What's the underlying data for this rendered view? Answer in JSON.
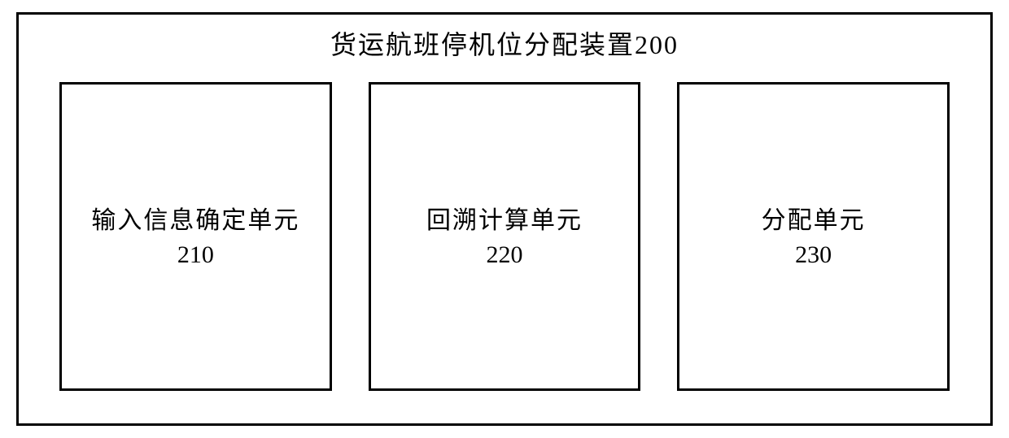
{
  "diagram": {
    "type": "block-diagram",
    "title": "货运航班停机位分配装置200",
    "background_color": "#ffffff",
    "border_color": "#000000",
    "border_width": 3,
    "text_color": "#000000",
    "title_fontsize": 32,
    "unit_fontsize": 30,
    "layout": "horizontal-row",
    "units": [
      {
        "label": "输入信息确定单元",
        "number": "210"
      },
      {
        "label": "回溯计算单元",
        "number": "220"
      },
      {
        "label": "分配单元",
        "number": "230"
      }
    ]
  }
}
